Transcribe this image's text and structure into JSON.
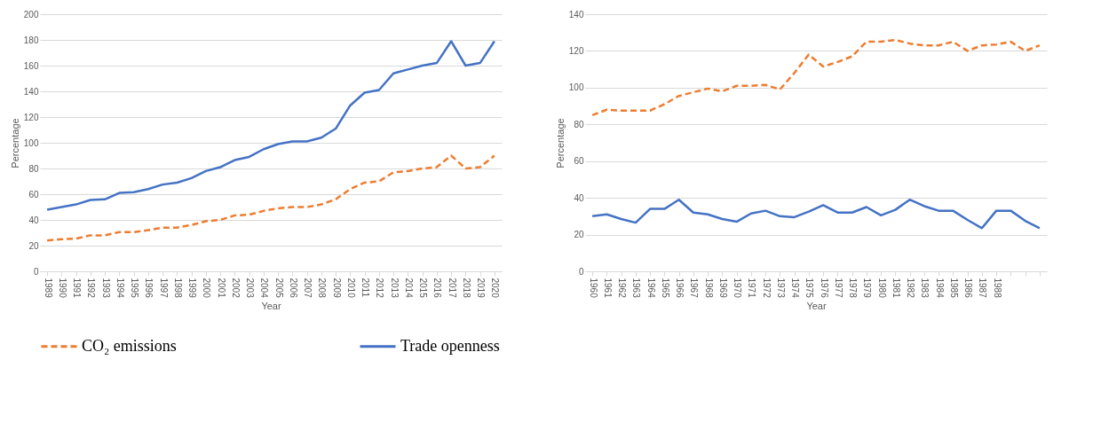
{
  "chart_data": [
    {
      "type": "line",
      "xlabel": "Year",
      "ylabel": "Percentage",
      "categories": [
        "1989",
        "1990",
        "1991",
        "1992",
        "1993",
        "1994",
        "1995",
        "1996",
        "1997",
        "1998",
        "1999",
        "2000",
        "2001",
        "2002",
        "2003",
        "2004",
        "2005",
        "2006",
        "2007",
        "2008",
        "2009",
        "2010",
        "2011",
        "2012",
        "2013",
        "2014",
        "2015",
        "2016",
        "2017",
        "2018",
        "2019",
        "2020"
      ],
      "series": [
        {
          "name": "CO₂ emissions",
          "color": "#ed7d31",
          "line_style": "dashed",
          "values": [
            24,
            25,
            25.5,
            28,
            28,
            30.5,
            30.5,
            32,
            34,
            34,
            36,
            39,
            40,
            43.5,
            44,
            47,
            49,
            50,
            50,
            52,
            56,
            64,
            69,
            70,
            77,
            78,
            80,
            81,
            90,
            80,
            81,
            90
          ]
        },
        {
          "name": "Trade openness",
          "color": "#4472c4",
          "line_style": "solid",
          "values": [
            48,
            50,
            52,
            55.5,
            56,
            61,
            61.5,
            64,
            67.5,
            69,
            72.5,
            78,
            81,
            86.5,
            89,
            95,
            99,
            101,
            101,
            104,
            111,
            129,
            139,
            141,
            154,
            157,
            160,
            162,
            179,
            160,
            162,
            179
          ]
        }
      ],
      "ylim": [
        0,
        200
      ],
      "yticks": [
        0,
        20,
        40,
        60,
        80,
        100,
        120,
        140,
        160,
        180,
        200
      ],
      "grid": "y",
      "legend": "bottom"
    },
    {
      "type": "line",
      "xlabel": "Year",
      "ylabel": "Percentage",
      "categories": [
        "1960",
        "1961",
        "1962",
        "1963",
        "1964",
        "1965",
        "1966",
        "1967",
        "1968",
        "1969",
        "1970",
        "1971",
        "1972",
        "1973",
        "1974",
        "1975",
        "1976",
        "1977",
        "1978",
        "1979",
        "1980",
        "1981",
        "1982",
        "1983",
        "1984",
        "1985",
        "1986",
        "1987",
        "1988",
        null,
        null,
        null
      ],
      "series": [
        {
          "name": "CO₂ emissions",
          "color": "#ed7d31",
          "line_style": "dashed",
          "values": [
            85,
            88,
            87.5,
            87.5,
            87.5,
            91,
            95.5,
            97.5,
            99.5,
            98,
            101,
            101,
            101.5,
            99,
            108,
            118,
            111.5,
            114,
            117,
            125,
            125,
            126,
            124,
            123,
            123,
            125,
            120,
            123,
            123.5,
            125,
            120,
            123
          ]
        },
        {
          "name": "Trade openness",
          "color": "#4472c4",
          "line_style": "solid",
          "values": [
            30,
            31,
            28.5,
            26.5,
            34,
            34,
            39,
            32,
            31,
            28.5,
            27,
            31.5,
            33,
            30,
            29.5,
            32.5,
            36,
            32,
            32,
            35,
            30.5,
            33.5,
            39,
            35.5,
            33,
            33,
            28,
            23.5,
            33,
            33,
            27.5,
            23.5
          ]
        }
      ],
      "ylim": [
        0,
        140
      ],
      "yticks": [
        0,
        20,
        40,
        60,
        80,
        100,
        120,
        140
      ],
      "grid": "y",
      "legend": "bottom"
    }
  ]
}
